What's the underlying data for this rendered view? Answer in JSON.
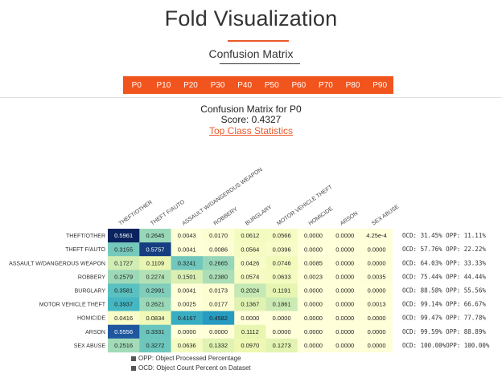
{
  "page": {
    "title": "Fold Visualization",
    "section_title": "Confusion Matrix",
    "heading_line1": "Confusion Matrix for P0",
    "heading_line2": "Score: 0.4327",
    "stats_link": "Top Class Statistics"
  },
  "tabs": [
    "P0",
    "P10",
    "P20",
    "P30",
    "P40",
    "P50",
    "P60",
    "P70",
    "P80",
    "P90"
  ],
  "colors": {
    "accent": "#f2541d",
    "link": "#ec5a2a"
  },
  "matrix": {
    "columns": [
      "THEFT/OTHER",
      "THEFT F/AUTO",
      "ASSAULT W/DANGEROUS WEAPON",
      "ROBBERY",
      "BURGLARY",
      "MOTOR VEHICLE THEFT",
      "HOMICIDE",
      "ARSON",
      "SEX ABUSE"
    ],
    "rows": [
      {
        "label": "THEFT/OTHER",
        "cells": [
          "0.5961",
          "0.2645",
          "0.0043",
          "0.0170",
          "0.0612",
          "0.0566",
          "0.0000",
          "0.0000",
          "4.25e-4"
        ],
        "values": [
          0.5961,
          0.2645,
          0.0043,
          0.017,
          0.0612,
          0.0566,
          0.0,
          0.0,
          0.000425
        ],
        "stats": "OCD: 31.45%  OPP: 11.11%"
      },
      {
        "label": "THEFT F/AUTO",
        "cells": [
          "0.3155",
          "0.5757",
          "0.0041",
          "0.0086",
          "0.0564",
          "0.0396",
          "0.0000",
          "0.0000",
          "0.0000"
        ],
        "values": [
          0.3155,
          0.5757,
          0.0041,
          0.0086,
          0.0564,
          0.0396,
          0.0,
          0.0,
          0.0
        ],
        "stats": "OCD: 57.76%  OPP: 22.22%"
      },
      {
        "label": "ASSAULT W/DANGEROUS WEAPON",
        "cells": [
          "0.1727",
          "0.1109",
          "0.3241",
          "0.2665",
          "0.0426",
          "0.0746",
          "0.0085",
          "0.0000",
          "0.0000"
        ],
        "values": [
          0.1727,
          0.1109,
          0.3241,
          0.2665,
          0.0426,
          0.0746,
          0.0085,
          0.0,
          0.0
        ],
        "stats": "OCD: 64.03%  OPP: 33.33%"
      },
      {
        "label": "ROBBERY",
        "cells": [
          "0.2579",
          "0.2274",
          "0.1501",
          "0.2380",
          "0.0574",
          "0.0633",
          "0.0023",
          "0.0000",
          "0.0035"
        ],
        "values": [
          0.2579,
          0.2274,
          0.1501,
          0.238,
          0.0574,
          0.0633,
          0.0023,
          0.0,
          0.0035
        ],
        "stats": "OCD: 75.44%  OPP: 44.44%"
      },
      {
        "label": "BURGLARY",
        "cells": [
          "0.3581",
          "0.2991",
          "0.0041",
          "0.0173",
          "0.2024",
          "0.1191",
          "0.0000",
          "0.0000",
          "0.0000"
        ],
        "values": [
          0.3581,
          0.2991,
          0.0041,
          0.0173,
          0.2024,
          0.1191,
          0.0,
          0.0,
          0.0
        ],
        "stats": "OCD: 88.58%  OPP: 55.56%"
      },
      {
        "label": "MOTOR VEHICLE THEFT",
        "cells": [
          "0.3937",
          "0.2621",
          "0.0025",
          "0.0177",
          "0.1367",
          "0.1861",
          "0.0000",
          "0.0000",
          "0.0013"
        ],
        "values": [
          0.3937,
          0.2621,
          0.0025,
          0.0177,
          0.1367,
          0.1861,
          0.0,
          0.0,
          0.0013
        ],
        "stats": "OCD: 99.14%  OPP: 66.67%"
      },
      {
        "label": "HOMICIDE",
        "cells": [
          "0.0416",
          "0.0834",
          "0.4167",
          "0.4582",
          "0.0000",
          "0.0000",
          "0.0000",
          "0.0000",
          "0.0000"
        ],
        "values": [
          0.0416,
          0.0834,
          0.4167,
          0.4582,
          0.0,
          0.0,
          0.0,
          0.0,
          0.0
        ],
        "stats": "OCD: 99.47%  OPP: 77.78%"
      },
      {
        "label": "ARSON",
        "cells": [
          "0.5556",
          "0.3331",
          "0.0000",
          "0.0000",
          "0.1112",
          "0.0000",
          "0.0000",
          "0.0000",
          "0.0000"
        ],
        "values": [
          0.5556,
          0.3331,
          0.0,
          0.0,
          0.1112,
          0.0,
          0.0,
          0.0,
          0.0
        ],
        "stats": "OCD: 99.59%  OPP: 88.89%"
      },
      {
        "label": "SEX ABUSE",
        "cells": [
          "0.2516",
          "0.3272",
          "0.0636",
          "0.1332",
          "0.0970",
          "0.1273",
          "0.0000",
          "0.0000",
          "0.0000"
        ],
        "values": [
          0.2516,
          0.3272,
          0.0636,
          0.1332,
          0.097,
          0.1273,
          0.0,
          0.0,
          0.0
        ],
        "stats": "OCD: 100.00%OPP: 100.00%"
      }
    ]
  },
  "legend": [
    "OPP: Object Processed Percentage",
    "OCD: Object Count Percent on Dataset"
  ]
}
